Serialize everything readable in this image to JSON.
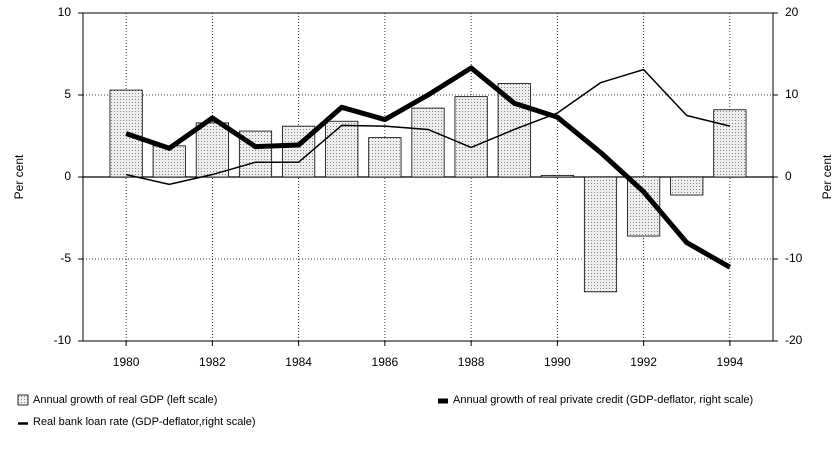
{
  "chart_data": {
    "type": "bar-line",
    "x": [
      1980,
      1981,
      1982,
      1983,
      1984,
      1985,
      1986,
      1987,
      1988,
      1989,
      1990,
      1991,
      1992,
      1993,
      1994
    ],
    "xlim": [
      1979,
      1995
    ],
    "xticks": [
      1980,
      1982,
      1984,
      1986,
      1988,
      1990,
      1992,
      1994
    ],
    "ylim": [
      -10,
      10
    ],
    "yticks": [
      10,
      5,
      0,
      -5,
      -10
    ],
    "y2lim": [
      -20,
      20
    ],
    "y2ticks": [
      20,
      10,
      0,
      -10,
      -20
    ],
    "ylabel": "Per cent",
    "y2label": "Per cent",
    "grid": true,
    "series": [
      {
        "name": "Annual growth of real GDP (left scale)",
        "kind": "bar",
        "axis": "y",
        "color": "#d9d9d9",
        "values": [
          5.3,
          1.9,
          3.3,
          2.8,
          3.1,
          3.4,
          2.4,
          4.2,
          4.9,
          5.7,
          0.1,
          -7.0,
          -3.6,
          -1.1,
          4.1
        ]
      },
      {
        "name": "Annual growth of real private credit (GDP-deflator, right scale)",
        "kind": "line",
        "axis": "y2",
        "color": "#000000",
        "width": 5,
        "values": [
          5.3,
          3.5,
          7.2,
          3.7,
          3.9,
          8.5,
          7.0,
          10.0,
          13.3,
          9.0,
          7.3,
          3.0,
          -1.8,
          -8.0,
          -11.0
        ]
      },
      {
        "name": "Real bank loan rate (GDP-deflator,right scale)",
        "kind": "line",
        "axis": "y2",
        "color": "#000000",
        "width": 1.5,
        "values": [
          0.3,
          -0.9,
          0.3,
          1.8,
          1.8,
          6.3,
          6.2,
          5.8,
          3.6,
          5.8,
          7.8,
          11.5,
          13.1,
          7.5,
          6.2
        ]
      }
    ]
  }
}
